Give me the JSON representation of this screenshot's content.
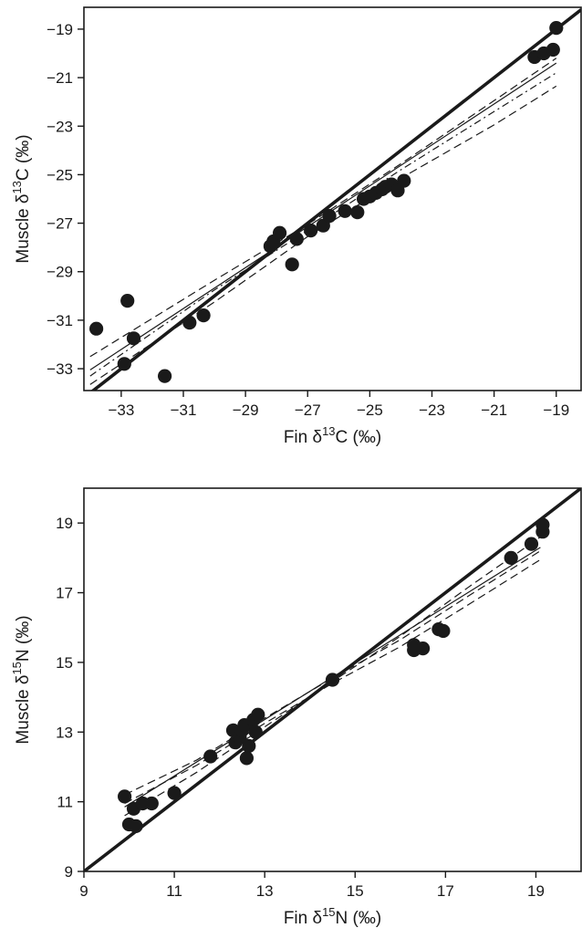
{
  "chart_data": [
    {
      "type": "scatter",
      "panel": "top",
      "xlabel": {
        "prefix": "Fin δ",
        "sup": "13",
        "suffix": "C (‰)"
      },
      "ylabel": {
        "prefix": "Muscle δ",
        "sup": "13",
        "suffix": "C (‰)"
      },
      "xlim": [
        -34.2,
        -18.2
      ],
      "ylim": [
        -33.9,
        -18.1
      ],
      "xticks": [
        -33,
        -31,
        -29,
        -27,
        -25,
        -23,
        -21,
        -19
      ],
      "yticks": [
        -33,
        -31,
        -29,
        -27,
        -25,
        -23,
        -21,
        -19
      ],
      "xtick_labels": [
        "−33",
        "−31",
        "−29",
        "−27",
        "−25",
        "−23",
        "−21",
        "−19"
      ],
      "ytick_labels": [
        "−33",
        "−31",
        "−29",
        "−27",
        "−25",
        "−23",
        "−21",
        "−19"
      ],
      "grid": false,
      "points": [
        [
          -33.8,
          -31.35
        ],
        [
          -32.9,
          -32.8
        ],
        [
          -32.8,
          -30.2
        ],
        [
          -32.6,
          -31.75
        ],
        [
          -31.6,
          -33.3
        ],
        [
          -30.8,
          -31.1
        ],
        [
          -30.35,
          -30.8
        ],
        [
          -28.2,
          -27.95
        ],
        [
          -28.1,
          -27.75
        ],
        [
          -27.9,
          -27.4
        ],
        [
          -27.5,
          -28.7
        ],
        [
          -27.35,
          -27.65
        ],
        [
          -26.9,
          -27.3
        ],
        [
          -26.5,
          -27.1
        ],
        [
          -26.3,
          -26.7
        ],
        [
          -25.8,
          -26.5
        ],
        [
          -25.4,
          -26.55
        ],
        [
          -25.2,
          -26.0
        ],
        [
          -25.0,
          -25.9
        ],
        [
          -24.8,
          -25.75
        ],
        [
          -24.6,
          -25.6
        ],
        [
          -24.5,
          -25.5
        ],
        [
          -24.3,
          -25.4
        ],
        [
          -24.1,
          -25.65
        ],
        [
          -23.9,
          -25.25
        ],
        [
          -19.7,
          -20.15
        ],
        [
          -19.4,
          -20.0
        ],
        [
          -19.1,
          -19.85
        ],
        [
          -19.0,
          -18.95
        ]
      ],
      "lines": [
        {
          "role": "identity",
          "style": "thick",
          "points": [
            [
              -34.2,
              -34.2
            ],
            [
              -18.2,
              -18.2
            ]
          ]
        },
        {
          "role": "fit",
          "style": "solid",
          "points": [
            [
              -34.0,
              -33.05
            ],
            [
              -19.0,
              -20.4
            ]
          ]
        },
        {
          "role": "ci",
          "style": "dashed",
          "points": [
            [
              -34.0,
              -32.5
            ],
            [
              -30.0,
              -29.35
            ],
            [
              -27.0,
              -27.05
            ],
            [
              -24.0,
              -24.55
            ],
            [
              -21.0,
              -21.95
            ],
            [
              -19.0,
              -20.2
            ]
          ]
        },
        {
          "role": "ci",
          "style": "dashed",
          "points": [
            [
              -34.0,
              -33.65
            ],
            [
              -30.0,
              -30.25
            ],
            [
              -27.0,
              -27.55
            ],
            [
              -24.0,
              -25.15
            ],
            [
              -21.0,
              -22.95
            ],
            [
              -19.0,
              -21.35
            ]
          ]
        },
        {
          "role": "ci",
          "style": "dashdot",
          "points": [
            [
              -34.0,
              -33.3
            ],
            [
              -30.0,
              -29.75
            ],
            [
              -27.0,
              -27.3
            ],
            [
              -24.0,
              -24.8
            ],
            [
              -21.0,
              -22.4
            ],
            [
              -19.0,
              -20.8
            ]
          ]
        }
      ]
    },
    {
      "type": "scatter",
      "panel": "bottom",
      "xlabel": {
        "prefix": "Fin δ",
        "sup": "15",
        "suffix": "N (‰)"
      },
      "ylabel": {
        "prefix": "Muscle δ",
        "sup": "15",
        "suffix": "N (‰)"
      },
      "xlim": [
        9.0,
        20.0
      ],
      "ylim": [
        9.0,
        20.0
      ],
      "xticks": [
        9,
        11,
        13,
        15,
        17,
        19
      ],
      "yticks": [
        9,
        11,
        13,
        15,
        17,
        19
      ],
      "xtick_labels": [
        "9",
        "11",
        "13",
        "15",
        "17",
        "19"
      ],
      "ytick_labels": [
        "9",
        "11",
        "13",
        "15",
        "17",
        "19"
      ],
      "grid": false,
      "points": [
        [
          9.9,
          11.15
        ],
        [
          10.0,
          10.35
        ],
        [
          10.1,
          10.8
        ],
        [
          10.15,
          10.3
        ],
        [
          10.3,
          10.95
        ],
        [
          10.5,
          10.95
        ],
        [
          11.0,
          11.25
        ],
        [
          11.8,
          12.3
        ],
        [
          12.3,
          13.05
        ],
        [
          12.35,
          12.7
        ],
        [
          12.45,
          12.85
        ],
        [
          12.5,
          13.05
        ],
        [
          12.55,
          13.2
        ],
        [
          12.6,
          12.25
        ],
        [
          12.65,
          12.6
        ],
        [
          12.75,
          13.35
        ],
        [
          12.8,
          13.0
        ],
        [
          12.85,
          13.5
        ],
        [
          14.5,
          14.5
        ],
        [
          16.3,
          15.35
        ],
        [
          16.3,
          15.5
        ],
        [
          16.5,
          15.4
        ],
        [
          16.85,
          15.95
        ],
        [
          16.95,
          15.9
        ],
        [
          18.45,
          18.0
        ],
        [
          18.9,
          18.4
        ],
        [
          19.15,
          18.75
        ],
        [
          19.15,
          18.95
        ]
      ],
      "lines": [
        {
          "role": "identity",
          "style": "thick",
          "points": [
            [
              9.0,
              9.0
            ],
            [
              20.0,
              20.0
            ]
          ]
        },
        {
          "role": "fit",
          "style": "solid",
          "points": [
            [
              9.9,
              10.85
            ],
            [
              19.1,
              18.3
            ]
          ]
        },
        {
          "role": "ci",
          "style": "dashed",
          "points": [
            [
              9.9,
              11.2
            ],
            [
              11.5,
              12.2
            ],
            [
              13.0,
              13.4
            ],
            [
              14.5,
              14.55
            ],
            [
              16.0,
              15.65
            ],
            [
              17.5,
              16.9
            ],
            [
              19.1,
              18.2
            ]
          ]
        },
        {
          "role": "ci",
          "style": "dashed",
          "points": [
            [
              9.9,
              10.6
            ],
            [
              11.5,
              11.85
            ],
            [
              13.0,
              13.15
            ],
            [
              14.5,
              14.45
            ],
            [
              16.0,
              15.75
            ],
            [
              17.5,
              17.15
            ],
            [
              19.1,
              18.6
            ]
          ]
        },
        {
          "role": "ci",
          "style": "dashed",
          "points": [
            [
              9.9,
              10.95
            ],
            [
              11.5,
              12.05
            ],
            [
              13.0,
              13.25
            ],
            [
              14.5,
              14.4
            ],
            [
              16.0,
              15.45
            ],
            [
              17.5,
              16.65
            ],
            [
              19.1,
              17.95
            ]
          ]
        }
      ]
    }
  ]
}
